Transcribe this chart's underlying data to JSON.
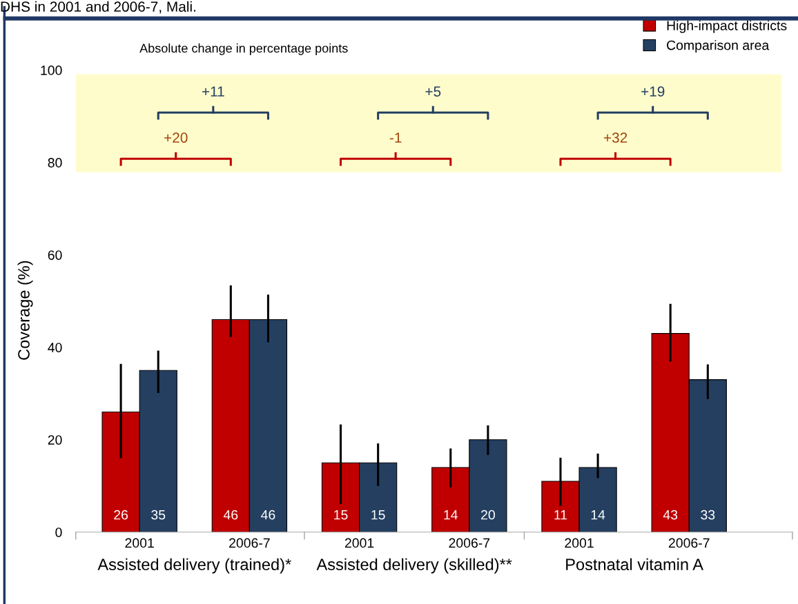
{
  "chart_data": {
    "type": "bar",
    "title": "DHS in 2001 and 2006-7, Mali.",
    "ylabel": "Coverage (%)",
    "categories": [
      "2001",
      "2006-7",
      "2001",
      "2006-7",
      "2001",
      "2006-7"
    ],
    "series": [
      {
        "name": "High-impact districts",
        "color": "#c00000",
        "values": [
          26,
          46,
          15,
          14,
          11,
          43
        ],
        "errors": [
          [
            16,
            36.4
          ],
          [
            42.2,
            53.4
          ],
          [
            6.1,
            23.3
          ],
          [
            9.7,
            18.1
          ],
          [
            5.7,
            16.1
          ],
          [
            36.9,
            49.4
          ]
        ]
      },
      {
        "name": "Comparison area",
        "color": "#243f60",
        "values": [
          35,
          46,
          15,
          20,
          14,
          33
        ],
        "errors": [
          [
            30.1,
            39.3
          ],
          [
            41.1,
            51.4
          ],
          [
            10,
            19.2
          ],
          [
            16.7,
            23.1
          ],
          [
            11.7,
            17
          ],
          [
            28.8,
            36.3
          ]
        ]
      }
    ],
    "data_labels": true,
    "ylim": [
      0,
      100
    ],
    "yticks": [
      0,
      20,
      40,
      60,
      80,
      100
    ],
    "bands": [
      {
        "axis": "y",
        "from": 77.9,
        "to": 99.1,
        "label": null,
        "color": "#fffccc"
      }
    ],
    "annotations": [
      "Absolute change in percentage points",
      "Assisted delivery (trained)*",
      "Assisted delivery (skilled)**",
      "Postnatal vitamin A",
      "+20",
      "+11",
      "-1",
      "+5",
      "+32",
      "+19"
    ],
    "legend": "top right",
    "grid": false
  }
}
